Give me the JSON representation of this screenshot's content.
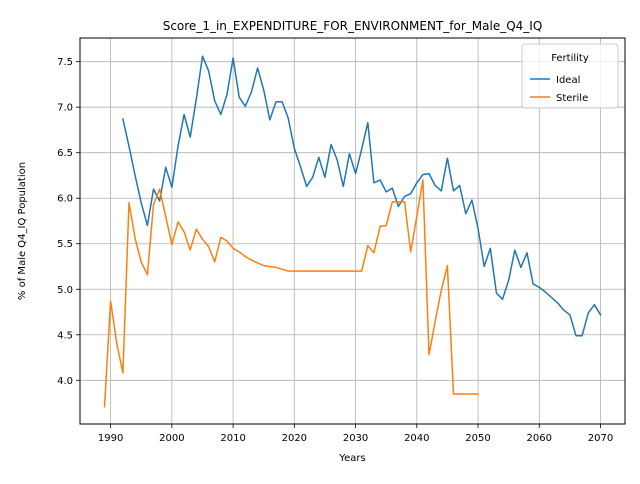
{
  "chart_data": {
    "type": "line",
    "title": "Score_1_in_EXPENDITURE_FOR_ENVIRONMENT_for_Male_Q4_IQ",
    "xlabel": "Years",
    "ylabel": "% of Male Q4_IQ Population",
    "xlim": [
      1985,
      2074
    ],
    "ylim": [
      3.52,
      7.76
    ],
    "xticks": [
      1990,
      2000,
      2010,
      2020,
      2030,
      2040,
      2050,
      2060,
      2070
    ],
    "yticks": [
      4.0,
      4.5,
      5.0,
      5.5,
      6.0,
      6.5,
      7.0,
      7.5
    ],
    "grid": true,
    "legend": {
      "title": "Fertility",
      "placement": "top-right"
    },
    "series": [
      {
        "name": "Ideal",
        "color": "#1f77b4",
        "x": [
          1992,
          1993,
          1994,
          1995,
          1996,
          1997,
          1998,
          1999,
          2000,
          2001,
          2002,
          2003,
          2004,
          2005,
          2006,
          2007,
          2008,
          2009,
          2010,
          2011,
          2012,
          2013,
          2014,
          2015,
          2016,
          2017,
          2018,
          2019,
          2020,
          2021,
          2022,
          2023,
          2024,
          2025,
          2026,
          2027,
          2028,
          2029,
          2030,
          2031,
          2032,
          2033,
          2034,
          2035,
          2036,
          2037,
          2038,
          2039,
          2040,
          2041,
          2042,
          2043,
          2044,
          2045,
          2046,
          2047,
          2048,
          2049,
          2050,
          2051,
          2052,
          2053,
          2054,
          2055,
          2056,
          2057,
          2058,
          2059,
          2060,
          2061,
          2062,
          2063,
          2064,
          2065,
          2066,
          2067,
          2068,
          2069,
          2070
        ],
        "values": [
          6.87,
          6.57,
          6.25,
          5.95,
          5.7,
          6.1,
          5.97,
          6.34,
          6.12,
          6.57,
          6.92,
          6.67,
          7.09,
          7.56,
          7.4,
          7.07,
          6.92,
          7.14,
          7.54,
          7.11,
          7.01,
          7.17,
          7.43,
          7.19,
          6.86,
          7.06,
          7.06,
          6.88,
          6.55,
          6.35,
          6.13,
          6.23,
          6.45,
          6.23,
          6.59,
          6.42,
          6.13,
          6.49,
          6.27,
          6.54,
          6.83,
          6.17,
          6.2,
          6.07,
          6.11,
          5.91,
          6.02,
          6.05,
          6.17,
          6.26,
          6.27,
          6.14,
          6.08,
          6.44,
          6.08,
          6.14,
          5.83,
          5.98,
          5.67,
          5.25,
          5.45,
          4.96,
          4.89,
          5.1,
          5.43,
          5.24,
          5.4,
          5.06,
          5.02,
          4.97,
          4.91,
          4.85,
          4.77,
          4.72,
          4.49,
          4.49,
          4.74,
          4.83,
          4.72
        ]
      },
      {
        "name": "Sterile",
        "color": "#ff7f0e",
        "x": [
          1989,
          1990,
          1991,
          1992,
          1993,
          1994,
          1995,
          1996,
          1997,
          1998,
          1999,
          2000,
          2001,
          2002,
          2003,
          2004,
          2005,
          2006,
          2007,
          2008,
          2009,
          2010,
          2011,
          2012,
          2013,
          2014,
          2015,
          2016,
          2017,
          2018,
          2019,
          2020,
          2021,
          2022,
          2023,
          2024,
          2025,
          2026,
          2027,
          2028,
          2029,
          2030,
          2031,
          2032,
          2033,
          2034,
          2035,
          2036,
          2037,
          2038,
          2039,
          2040,
          2041,
          2042,
          2043,
          2044,
          2045,
          2046,
          2047,
          2048,
          2049,
          2050
        ],
        "values": [
          3.71,
          4.87,
          4.41,
          4.08,
          5.95,
          5.56,
          5.3,
          5.16,
          5.93,
          6.1,
          5.8,
          5.49,
          5.74,
          5.63,
          5.43,
          5.66,
          5.55,
          5.47,
          5.3,
          5.57,
          5.53,
          5.45,
          5.41,
          5.36,
          5.32,
          5.29,
          5.26,
          5.25,
          5.24,
          5.22,
          5.2,
          5.2,
          5.2,
          5.2,
          5.2,
          5.2,
          5.2,
          5.2,
          5.2,
          5.2,
          5.2,
          5.2,
          5.2,
          5.48,
          5.4,
          5.69,
          5.7,
          5.96,
          5.96,
          5.96,
          5.41,
          5.8,
          6.2,
          4.28,
          4.65,
          4.99,
          5.26,
          3.85,
          3.85,
          3.85,
          3.85,
          3.85
        ]
      }
    ]
  }
}
